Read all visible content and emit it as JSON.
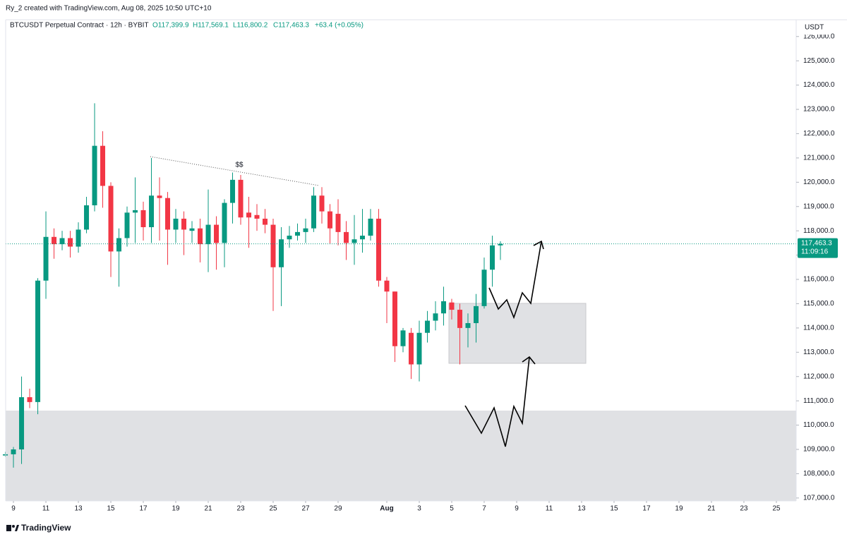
{
  "chart_data": {
    "type": "candlestick",
    "credit": "Ry_2 created with TradingView.com, Aug 08, 2025 10:50 UTC+10",
    "symbol": "BTCUSDT Perpetual Contract · 12h · BYBIT",
    "ohlc_labels": [
      "O117,399.9",
      "H117,569.1",
      "L116,800.2",
      "C117,463.3",
      "+63.4 (+0.05%)"
    ],
    "currency": "USDT",
    "annotation": "$$",
    "last_price_label": "117,463.3",
    "countdown": "11:09:16",
    "brand": "TradingView",
    "up_color": "#089981",
    "down_color": "#f23645",
    "x": [
      8.5,
      9,
      9.5,
      10,
      10.5,
      11,
      11.5,
      12,
      12.5,
      13,
      13.5,
      14,
      14.5,
      15,
      15.5,
      16,
      16.5,
      17,
      17.5,
      18,
      18.5,
      19,
      19.5,
      20,
      20.5,
      21,
      21.5,
      22,
      22.5,
      23,
      23.5,
      24,
      24.5,
      25,
      25.5,
      26,
      26.5,
      27,
      27.5,
      28,
      28.5,
      29,
      29.5,
      30,
      30.5,
      31,
      31.5,
      32,
      32.5,
      33,
      33.5,
      34,
      34.5,
      35,
      35.5,
      36,
      36.5,
      37,
      37.5,
      38,
      38.5,
      39
    ],
    "open": [
      108750,
      108800,
      109000,
      111150,
      110950,
      115950,
      117750,
      117450,
      117700,
      117350,
      118050,
      119050,
      121500,
      119850,
      117150,
      117700,
      118750,
      118850,
      118150,
      119450,
      119350,
      118050,
      118500,
      118000,
      118100,
      117450,
      118250,
      117500,
      119150,
      120100,
      118750,
      118650,
      118500,
      118250,
      116500,
      117650,
      117800,
      117950,
      118100,
      119450,
      118800,
      118700,
      117950,
      117500,
      117650,
      117800,
      118500,
      115950,
      115500,
      113250,
      113800,
      112500,
      113800,
      114300,
      114600,
      115050,
      114750,
      114000,
      114200,
      114900,
      116400,
      117399.9
    ],
    "high": [
      108900,
      109100,
      112000,
      111500,
      116050,
      118800,
      118100,
      118000,
      118000,
      118350,
      119400,
      123250,
      122100,
      120000,
      118100,
      119000,
      120200,
      119200,
      121000,
      120200,
      119600,
      118900,
      118800,
      118400,
      118500,
      119700,
      118600,
      119300,
      120400,
      120300,
      119400,
      119100,
      118900,
      118500,
      118150,
      118200,
      118300,
      118500,
      119800,
      119800,
      119100,
      119300,
      118400,
      118650,
      118900,
      118900,
      118900,
      116100,
      115500,
      114000,
      114000,
      114300,
      114700,
      115100,
      115700,
      115200,
      115000,
      114600,
      115400,
      116900,
      117800,
      117569.1
    ],
    "low": [
      108700,
      108250,
      108400,
      110700,
      110450,
      115200,
      116850,
      117200,
      116900,
      117100,
      117900,
      118800,
      118950,
      116100,
      115700,
      117350,
      117500,
      117600,
      117500,
      117600,
      116600,
      117500,
      117000,
      117500,
      116700,
      116300,
      116400,
      116500,
      118300,
      118250,
      117300,
      118000,
      117900,
      114700,
      114900,
      117300,
      117600,
      117500,
      117950,
      118300,
      117450,
      117400,
      116800,
      116600,
      117100,
      117600,
      115700,
      114200,
      112600,
      113000,
      111900,
      111800,
      113400,
      113900,
      114100,
      114350,
      112500,
      113200,
      113400,
      114800,
      115700,
      116800.2
    ],
    "close": [
      108800,
      109000,
      111150,
      110950,
      115950,
      117750,
      117450,
      117700,
      117350,
      118050,
      119050,
      121500,
      119850,
      117150,
      117700,
      118750,
      118850,
      118150,
      119450,
      119350,
      118050,
      118500,
      118050,
      118100,
      117450,
      118250,
      117500,
      119150,
      120100,
      118550,
      118550,
      118500,
      118250,
      116500,
      117650,
      117800,
      117950,
      118100,
      119450,
      118800,
      118100,
      117950,
      117500,
      117650,
      117800,
      118500,
      115950,
      115500,
      113250,
      113900,
      112500,
      113800,
      114300,
      114600,
      115100,
      114750,
      114000,
      114200,
      114900,
      116400,
      117400,
      117463.3
    ],
    "xlim": [
      8.52,
      57.22
    ],
    "xticks": [
      9,
      11,
      13,
      15,
      17,
      19,
      21,
      23,
      25,
      27,
      29,
      {
        "value": 32,
        "label": "Aug"
      },
      {
        "value": 34,
        "label": "3"
      },
      {
        "value": 36,
        "label": "5"
      },
      {
        "value": 38,
        "label": "7"
      },
      {
        "value": 40,
        "label": "9"
      },
      {
        "value": 42,
        "label": "11"
      },
      {
        "value": 44,
        "label": "13"
      },
      {
        "value": 46,
        "label": "15"
      },
      {
        "value": 48,
        "label": "17"
      },
      {
        "value": 50,
        "label": "19"
      },
      {
        "value": 52,
        "label": "21"
      },
      {
        "value": 54,
        "label": "23"
      },
      {
        "value": 56,
        "label": "25"
      }
    ],
    "ylim": [
      106880,
      126690
    ],
    "yticks": [
      {
        "value": 107000,
        "label": "107,000.0"
      },
      {
        "value": 108000,
        "label": "108,000.0"
      },
      {
        "value": 109000,
        "label": "109,000.0"
      },
      {
        "value": 110000,
        "label": "110,000.0"
      },
      {
        "value": 111000,
        "label": "111,000.0"
      },
      {
        "value": 112000,
        "label": "112,000.0"
      },
      {
        "value": 113000,
        "label": "113,000.0"
      },
      {
        "value": 114000,
        "label": "114,000.0"
      },
      {
        "value": 115000,
        "label": "115,000.0"
      },
      {
        "value": 116000,
        "label": "116,000.0"
      },
      {
        "value": 117000,
        "label": "117,000.0"
      },
      {
        "value": 118000,
        "label": "118,000.0"
      },
      {
        "value": 119000,
        "label": "119,000.0"
      },
      {
        "value": 120000,
        "label": "120,000.0"
      },
      {
        "value": 121000,
        "label": "121,000.0"
      },
      {
        "value": 122000,
        "label": "122,000.0"
      },
      {
        "value": 123000,
        "label": "123,000.0"
      },
      {
        "value": 124000,
        "label": "124,000.0"
      },
      {
        "value": 125000,
        "label": "125,000.0"
      },
      {
        "value": 126000,
        "label": "126,000.0"
      }
    ]
  }
}
